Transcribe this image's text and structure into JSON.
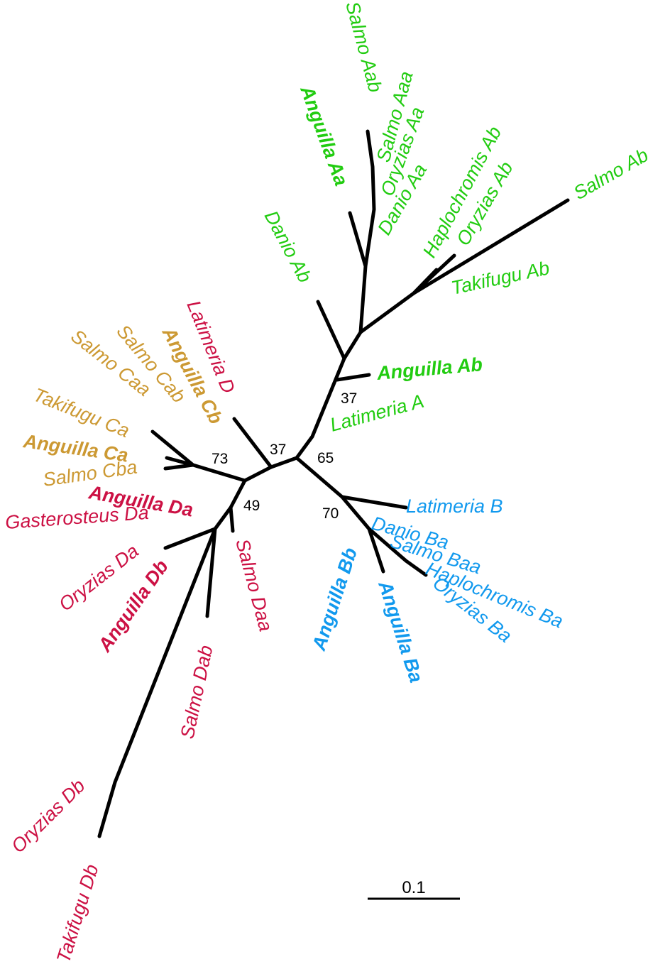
{
  "colors": {
    "A": "#22cc11",
    "B": "#1199ee",
    "C": "#cc9933",
    "D": "#cc1144",
    "branch": "#000000"
  },
  "scale_bar": {
    "label": "0.1",
    "value": 0.1
  },
  "bootstrap": [
    "37",
    "37",
    "65",
    "73",
    "49",
    "70"
  ],
  "tips": [
    {
      "label": "Salmo Aab",
      "group": "A",
      "bold": false
    },
    {
      "label": "Salmo Aaa",
      "group": "A",
      "bold": false
    },
    {
      "label": "Anguilla Aa",
      "group": "A",
      "bold": true
    },
    {
      "label": "Oryzias Aa",
      "group": "A",
      "bold": false
    },
    {
      "label": "Danio Aa",
      "group": "A",
      "bold": false
    },
    {
      "label": "Haplochromis Ab",
      "group": "A",
      "bold": false
    },
    {
      "label": "Oryzias Ab",
      "group": "A",
      "bold": false
    },
    {
      "label": "Salmo Ab",
      "group": "A",
      "bold": false
    },
    {
      "label": "Takifugu Ab",
      "group": "A",
      "bold": false
    },
    {
      "label": "Danio Ab",
      "group": "A",
      "bold": false
    },
    {
      "label": "Anguilla Ab",
      "group": "A",
      "bold": true
    },
    {
      "label": "Latimeria A",
      "group": "A",
      "bold": false
    },
    {
      "label": "Latimeria D",
      "group": "D",
      "bold": false
    },
    {
      "label": "Anguilla Cb",
      "group": "C",
      "bold": true
    },
    {
      "label": "Salmo Cab",
      "group": "C",
      "bold": false
    },
    {
      "label": "Salmo Caa",
      "group": "C",
      "bold": false
    },
    {
      "label": "Takifugu Ca",
      "group": "C",
      "bold": false
    },
    {
      "label": "Anguilla Ca",
      "group": "C",
      "bold": true
    },
    {
      "label": "Salmo Cba",
      "group": "C",
      "bold": false
    },
    {
      "label": "Anguilla Da",
      "group": "D",
      "bold": true
    },
    {
      "label": "Gasterosteus Da",
      "group": "D",
      "bold": false
    },
    {
      "label": "Oryzias Da",
      "group": "D",
      "bold": false
    },
    {
      "label": "Anguilla Db",
      "group": "D",
      "bold": true
    },
    {
      "label": "Salmo Daa",
      "group": "D",
      "bold": false
    },
    {
      "label": "Salmo Dab",
      "group": "D",
      "bold": false
    },
    {
      "label": "Oryzias Db",
      "group": "D",
      "bold": false
    },
    {
      "label": "Takifugu Db",
      "group": "D",
      "bold": false
    },
    {
      "label": "Latimeria B",
      "group": "B",
      "bold": false
    },
    {
      "label": "Danio Ba",
      "group": "B",
      "bold": false
    },
    {
      "label": "Salmo Baa",
      "group": "B",
      "bold": false
    },
    {
      "label": "Haplochromis Ba",
      "group": "B",
      "bold": false
    },
    {
      "label": "Oryzias Ba",
      "group": "B",
      "bold": false
    },
    {
      "label": "Anguilla Bb",
      "group": "B",
      "bold": true
    },
    {
      "label": "Anguilla Ba",
      "group": "B",
      "bold": true
    }
  ]
}
